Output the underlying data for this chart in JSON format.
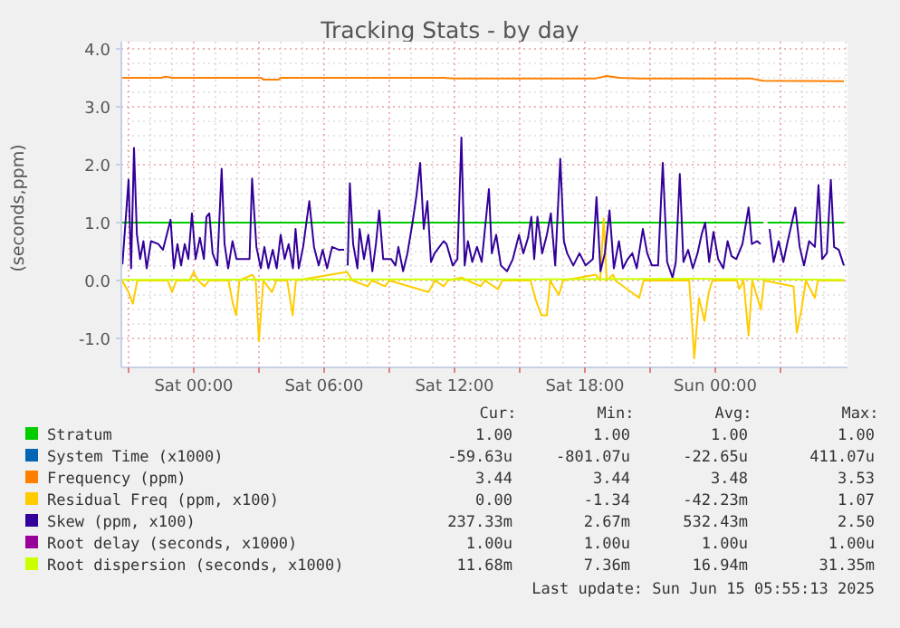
{
  "chart_data": {
    "type": "line",
    "title": "Tracking Stats - by day",
    "ylabel": "(seconds,ppm)",
    "xlim": [
      "2025-06-13T20:40",
      "2025-06-15T06:05"
    ],
    "ylim": [
      -1.5,
      4.0
    ],
    "xticks": [
      {
        "value": "2025-06-13T21:00",
        "label": null
      },
      {
        "value": "2025-06-14T00:00",
        "label": "Sat 00:00"
      },
      {
        "value": "2025-06-14T03:00",
        "label": null
      },
      {
        "value": "2025-06-14T06:00",
        "label": "Sat 06:00"
      },
      {
        "value": "2025-06-14T09:00",
        "label": null
      },
      {
        "value": "2025-06-14T12:00",
        "label": "Sat 12:00"
      },
      {
        "value": "2025-06-14T15:00",
        "label": null
      },
      {
        "value": "2025-06-14T18:00",
        "label": "Sat 18:00"
      },
      {
        "value": "2025-06-14T21:00",
        "label": null
      },
      {
        "value": "2025-06-15T00:00",
        "label": "Sun 00:00"
      },
      {
        "value": "2025-06-15T03:00",
        "label": null
      }
    ],
    "yticks": [
      {
        "value": -1,
        "label": "-1.0"
      },
      {
        "value": 0,
        "label": "0.0"
      },
      {
        "value": 1,
        "label": "1.0"
      },
      {
        "value": 2,
        "label": "2.0"
      },
      {
        "value": 3,
        "label": "3.0"
      },
      {
        "value": 4,
        "label": "4.0"
      }
    ],
    "grid": true,
    "legend": "bottom",
    "marker": "none",
    "line_style": "solid",
    "series": [
      {
        "name": "Stratum",
        "color": "#00cc00",
        "x": [
          "2025-06-13T20:42",
          "2025-06-14T06:57",
          "2025-06-14T07:00",
          "2025-06-14T07:03",
          "2025-06-15T02:12",
          "2025-06-15T02:18",
          "2025-06-15T02:24",
          "2025-06-15T05:55"
        ],
        "values": [
          1,
          1,
          null,
          1,
          1,
          null,
          1,
          1
        ]
      },
      {
        "name": "System Time (x1000)",
        "color": "#0066b3"
      },
      {
        "name": "Frequency (ppm)",
        "color": "#ff8000",
        "x": [
          "2025-06-13T20:42",
          "2025-06-13T22:30",
          "2025-06-13T22:42",
          "2025-06-13T23:00",
          "2025-06-14T03:06",
          "2025-06-14T03:12",
          "2025-06-14T03:54",
          "2025-06-14T04:00",
          "2025-06-14T11:30",
          "2025-06-14T12:00",
          "2025-06-14T18:30",
          "2025-06-14T19:00",
          "2025-06-14T19:36",
          "2025-06-14T20:30",
          "2025-06-15T01:36",
          "2025-06-15T02:12",
          "2025-06-15T05:55"
        ],
        "values": [
          3.5,
          3.5,
          3.52,
          3.5,
          3.5,
          3.47,
          3.47,
          3.5,
          3.5,
          3.49,
          3.49,
          3.53,
          3.5,
          3.49,
          3.49,
          3.45,
          3.44
        ]
      },
      {
        "name": "Residual Freq (ppm, x100)",
        "color": "#ffcc00",
        "x": [
          "2025-06-13T20:42",
          "2025-06-13T21:00",
          "2025-06-13T21:12",
          "2025-06-13T21:24",
          "2025-06-13T22:48",
          "2025-06-13T23:00",
          "2025-06-13T23:12",
          "2025-06-13T23:48",
          "2025-06-14T00:00",
          "2025-06-14T00:12",
          "2025-06-14T00:30",
          "2025-06-14T00:42",
          "2025-06-14T01:36",
          "2025-06-14T01:48",
          "2025-06-14T01:57",
          "2025-06-14T02:06",
          "2025-06-14T02:42",
          "2025-06-14T02:51",
          "2025-06-14T03:00",
          "2025-06-14T03:12",
          "2025-06-14T03:36",
          "2025-06-14T03:48",
          "2025-06-14T04:18",
          "2025-06-14T04:33",
          "2025-06-14T04:42",
          "2025-06-14T07:03",
          "2025-06-14T07:18",
          "2025-06-14T08:00",
          "2025-06-14T08:12",
          "2025-06-14T08:48",
          "2025-06-14T09:00",
          "2025-06-14T10:48",
          "2025-06-14T11:06",
          "2025-06-14T11:30",
          "2025-06-14T11:42",
          "2025-06-14T12:20",
          "2025-06-14T12:36",
          "2025-06-14T13:12",
          "2025-06-14T13:24",
          "2025-06-14T14:00",
          "2025-06-14T14:12",
          "2025-06-14T15:30",
          "2025-06-14T15:45",
          "2025-06-14T16:00",
          "2025-06-14T16:15",
          "2025-06-14T16:24",
          "2025-06-14T16:48",
          "2025-06-14T17:00",
          "2025-06-14T18:30",
          "2025-06-14T18:42",
          "2025-06-14T18:52",
          "2025-06-14T19:00",
          "2025-06-14T19:18",
          "2025-06-14T19:24",
          "2025-06-14T20:30",
          "2025-06-14T20:42",
          "2025-06-14T22:48",
          "2025-06-14T23:02",
          "2025-06-14T23:15",
          "2025-06-14T23:30",
          "2025-06-14T23:42",
          "2025-06-14T23:52",
          "2025-06-15T01:00",
          "2025-06-15T01:06",
          "2025-06-15T01:18",
          "2025-06-15T01:32",
          "2025-06-15T01:42",
          "2025-06-15T02:06",
          "2025-06-15T02:15",
          "2025-06-15T03:36",
          "2025-06-15T03:45",
          "2025-06-15T03:58",
          "2025-06-15T04:10",
          "2025-06-15T04:35",
          "2025-06-15T04:43",
          "2025-06-15T05:55"
        ],
        "values": [
          0,
          -0.2,
          -0.4,
          0,
          0,
          -0.2,
          0,
          0,
          0.15,
          0,
          -0.1,
          0,
          0,
          -0.4,
          -0.6,
          0,
          0.1,
          0,
          -1.05,
          0,
          -0.2,
          0,
          0,
          -0.6,
          0,
          0.15,
          0,
          -0.1,
          0,
          -0.1,
          0,
          -0.2,
          0,
          -0.1,
          0,
          0.05,
          0,
          -0.1,
          0,
          -0.15,
          0,
          0,
          -0.35,
          -0.6,
          -0.6,
          0,
          -0.25,
          0,
          0.1,
          0,
          1.07,
          0,
          0.1,
          0,
          -0.3,
          0,
          0,
          -1.34,
          -0.3,
          -0.7,
          -0.2,
          0,
          0,
          -0.15,
          0,
          -0.95,
          0,
          -0.5,
          0,
          -0.1,
          -0.9,
          -0.5,
          0,
          -0.3,
          0,
          0
        ]
      },
      {
        "name": "Skew (ppm, x100)",
        "color": "#330099",
        "x": [
          "2025-06-13T20:43",
          "2025-06-13T21:00",
          "2025-06-13T21:07",
          "2025-06-13T21:15",
          "2025-06-13T21:23",
          "2025-06-13T21:32",
          "2025-06-13T21:41",
          "2025-06-13T21:50",
          "2025-06-13T22:02",
          "2025-06-13T22:22",
          "2025-06-13T22:35",
          "2025-06-13T22:56",
          "2025-06-13T23:05",
          "2025-06-13T23:15",
          "2025-06-13T23:25",
          "2025-06-13T23:35",
          "2025-06-13T23:45",
          "2025-06-13T23:55",
          "2025-06-14T00:05",
          "2025-06-14T00:17",
          "2025-06-14T00:28",
          "2025-06-14T00:35",
          "2025-06-14T00:43",
          "2025-06-14T00:52",
          "2025-06-14T01:05",
          "2025-06-14T01:17",
          "2025-06-14T01:25",
          "2025-06-14T01:35",
          "2025-06-14T01:47",
          "2025-06-14T01:58",
          "2025-06-14T02:19",
          "2025-06-14T02:34",
          "2025-06-14T02:41",
          "2025-06-14T02:53",
          "2025-06-14T03:05",
          "2025-06-14T03:15",
          "2025-06-14T03:26",
          "2025-06-14T03:38",
          "2025-06-14T03:49",
          "2025-06-14T04:00",
          "2025-06-14T04:11",
          "2025-06-14T04:22",
          "2025-06-14T04:34",
          "2025-06-14T04:41",
          "2025-06-14T04:50",
          "2025-06-14T05:02",
          "2025-06-14T05:19",
          "2025-06-14T05:32",
          "2025-06-14T05:45",
          "2025-06-14T05:56",
          "2025-06-14T06:08",
          "2025-06-14T06:22",
          "2025-06-14T06:41",
          "2025-06-14T06:55",
          "2025-06-14T07:00",
          "2025-06-14T07:05",
          "2025-06-14T07:11",
          "2025-06-14T07:20",
          "2025-06-14T07:32",
          "2025-06-14T07:38",
          "2025-06-14T07:50",
          "2025-06-14T08:02",
          "2025-06-14T08:13",
          "2025-06-14T08:23",
          "2025-06-14T08:32",
          "2025-06-14T08:43",
          "2025-06-14T09:05",
          "2025-06-14T09:17",
          "2025-06-14T09:25",
          "2025-06-14T09:38",
          "2025-06-14T09:50",
          "2025-06-14T10:04",
          "2025-06-14T10:15",
          "2025-06-14T10:25",
          "2025-06-14T10:35",
          "2025-06-14T10:45",
          "2025-06-14T10:55",
          "2025-06-14T11:05",
          "2025-06-14T11:30",
          "2025-06-14T11:38",
          "2025-06-14T11:55",
          "2025-06-14T12:08",
          "2025-06-14T12:19",
          "2025-06-14T12:28",
          "2025-06-14T12:37",
          "2025-06-14T12:49",
          "2025-06-14T13:02",
          "2025-06-14T13:15",
          "2025-06-14T13:35",
          "2025-06-14T13:43",
          "2025-06-14T13:55",
          "2025-06-14T14:08",
          "2025-06-14T14:25",
          "2025-06-14T14:41",
          "2025-06-14T14:58",
          "2025-06-14T15:10",
          "2025-06-14T15:23",
          "2025-06-14T15:32",
          "2025-06-14T15:40",
          "2025-06-14T15:49",
          "2025-06-14T16:02",
          "2025-06-14T16:15",
          "2025-06-14T16:26",
          "2025-06-14T16:38",
          "2025-06-14T16:52",
          "2025-06-14T17:02",
          "2025-06-14T17:11",
          "2025-06-14T17:28",
          "2025-06-14T17:45",
          "2025-06-14T18:02",
          "2025-06-14T18:22",
          "2025-06-14T18:32",
          "2025-06-14T18:43",
          "2025-06-14T18:55",
          "2025-06-14T19:08",
          "2025-06-14T19:20",
          "2025-06-14T19:34",
          "2025-06-14T19:45",
          "2025-06-14T19:58",
          "2025-06-14T20:11",
          "2025-06-14T20:23",
          "2025-06-14T20:40",
          "2025-06-14T20:52",
          "2025-06-14T21:05",
          "2025-06-14T21:22",
          "2025-06-14T21:35",
          "2025-06-14T21:47",
          "2025-06-14T22:02",
          "2025-06-14T22:11",
          "2025-06-14T22:22",
          "2025-06-14T22:32",
          "2025-06-14T22:45",
          "2025-06-14T22:58",
          "2025-06-14T23:11",
          "2025-06-14T23:22",
          "2025-06-14T23:32",
          "2025-06-14T23:43",
          "2025-06-14T23:55",
          "2025-06-15T00:08",
          "2025-06-15T00:22",
          "2025-06-15T00:34",
          "2025-06-15T00:45",
          "2025-06-15T00:58",
          "2025-06-15T01:15",
          "2025-06-15T01:32",
          "2025-06-15T01:41",
          "2025-06-15T01:56",
          "2025-06-15T02:05",
          "2025-06-15T02:18",
          "2025-06-15T02:30",
          "2025-06-15T02:41",
          "2025-06-15T02:55",
          "2025-06-15T03:08",
          "2025-06-15T03:20",
          "2025-06-15T03:41",
          "2025-06-15T03:53",
          "2025-06-15T04:05",
          "2025-06-15T04:19",
          "2025-06-15T04:35",
          "2025-06-15T04:45",
          "2025-06-15T04:55",
          "2025-06-15T05:08",
          "2025-06-15T05:19",
          "2025-06-15T05:28",
          "2025-06-15T05:41",
          "2025-06-15T05:55"
        ],
        "values": [
          0.28,
          1.74,
          0.21,
          2.29,
          0.79,
          0.37,
          0.68,
          0.21,
          0.68,
          0.63,
          0.53,
          1.05,
          0.21,
          0.63,
          0.26,
          0.63,
          0.37,
          1.16,
          0.37,
          0.74,
          0.37,
          1.1,
          1.16,
          0.47,
          0.26,
          1.93,
          0.63,
          0.21,
          0.68,
          0.37,
          0.37,
          0.37,
          1.76,
          0.58,
          0.21,
          0.58,
          0.21,
          0.53,
          0.21,
          0.79,
          0.37,
          0.63,
          0.21,
          0.89,
          0.21,
          0.58,
          1.37,
          0.58,
          0.26,
          0.53,
          0.21,
          0.58,
          0.53,
          0.53,
          null,
          0.26,
          1.68,
          0.63,
          0.21,
          0.89,
          0.37,
          0.79,
          0.16,
          0.63,
          1.21,
          0.37,
          0.37,
          0.26,
          0.58,
          0.16,
          0.47,
          1.0,
          1.47,
          2.03,
          0.89,
          1.37,
          0.32,
          0.47,
          0.68,
          0.63,
          0.26,
          0.37,
          2.47,
          0.26,
          0.68,
          0.32,
          0.58,
          0.32,
          1.58,
          0.47,
          0.79,
          0.26,
          0.16,
          0.37,
          0.79,
          0.47,
          0.74,
          1.1,
          0.37,
          1.1,
          0.47,
          0.79,
          1.16,
          0.26,
          2.1,
          0.68,
          0.47,
          0.26,
          0.47,
          0.26,
          0.37,
          1.44,
          0.16,
          0.47,
          1.21,
          0.21,
          0.68,
          0.21,
          0.37,
          0.47,
          0.21,
          0.89,
          0.47,
          0.26,
          0.26,
          2.03,
          0.32,
          0.05,
          0.32,
          1.84,
          0.32,
          0.53,
          0.21,
          0.47,
          0.79,
          1.0,
          0.32,
          0.84,
          0.37,
          0.21,
          0.68,
          0.42,
          0.37,
          0.63,
          1.26,
          0.63,
          0.68,
          0.63,
          null,
          0.89,
          0.32,
          0.68,
          0.32,
          0.68,
          1.26,
          0.58,
          0.26,
          0.68,
          0.58,
          1.65,
          0.37,
          0.47,
          1.74,
          0.58,
          0.53,
          0.26
        ]
      },
      {
        "name": "Root delay (seconds, x1000)",
        "color": "#990099"
      },
      {
        "name": "Root dispersion (seconds, x1000)",
        "color": "#ccff00",
        "x": [
          "2025-06-13T20:42",
          "2025-06-14T05:00",
          "2025-06-14T15:00",
          "2025-06-14T23:00",
          "2025-06-15T05:55"
        ],
        "values": [
          0.01,
          0.02,
          0.02,
          0.03,
          0.01
        ]
      }
    ],
    "annotations": [
      "Cur:",
      "Min:",
      "Avg:",
      "Max:",
      "1.00",
      "1.00",
      "1.00",
      "1.00",
      "-59.63u",
      "-801.07u",
      "-22.65u",
      "411.07u",
      "3.44",
      "3.44",
      "3.48",
      "3.53",
      "0.00",
      "-1.34",
      "-42.23m",
      "1.07",
      "237.33m",
      "2.67m",
      "532.43m",
      "2.50",
      "1.00u",
      "1.00u",
      "1.00u",
      "1.00u",
      "11.68m",
      "7.36m",
      "16.94m",
      "31.35m",
      "Last update: Sun Jun 15 05:55:13 2025"
    ]
  }
}
